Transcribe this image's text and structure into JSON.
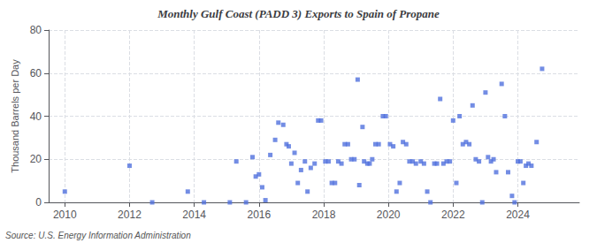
{
  "chart_data": {
    "type": "scatter",
    "title": "Monthly Gulf Coast (PADD 3) Exports to Spain of Propane",
    "ylabel": "Thousand Barrels per Day",
    "annotations": [
      "Source: U.S. Energy Information Administration"
    ],
    "marker": "square",
    "grid": true,
    "xlim": [
      2009.5,
      2025.9
    ],
    "ylim": [
      0,
      80
    ],
    "xticks": [
      2010,
      2012,
      2014,
      2016,
      2018,
      2020,
      2022,
      2024
    ],
    "yticks": [
      0,
      20,
      40,
      60,
      80
    ],
    "x": [
      2010.0,
      2012.0,
      2012.7,
      2013.8,
      2014.3,
      2015.1,
      2015.3,
      2015.6,
      2015.8,
      2015.9,
      2016.0,
      2016.1,
      2016.2,
      2016.35,
      2016.5,
      2016.6,
      2016.75,
      2016.85,
      2016.92,
      2017.0,
      2017.1,
      2017.2,
      2017.3,
      2017.42,
      2017.5,
      2017.6,
      2017.72,
      2017.83,
      2017.92,
      2018.05,
      2018.15,
      2018.25,
      2018.35,
      2018.45,
      2018.55,
      2018.65,
      2018.75,
      2018.85,
      2018.95,
      2019.05,
      2019.1,
      2019.2,
      2019.25,
      2019.35,
      2019.42,
      2019.5,
      2019.6,
      2019.7,
      2019.83,
      2019.92,
      2020.05,
      2020.15,
      2020.25,
      2020.35,
      2020.45,
      2020.55,
      2020.65,
      2020.75,
      2020.85,
      2021.0,
      2021.1,
      2021.2,
      2021.3,
      2021.42,
      2021.5,
      2021.6,
      2021.7,
      2021.8,
      2021.9,
      2022.0,
      2022.1,
      2022.2,
      2022.3,
      2022.4,
      2022.5,
      2022.6,
      2022.7,
      2022.8,
      2022.9,
      2023.0,
      2023.08,
      2023.17,
      2023.25,
      2023.33,
      2023.5,
      2023.6,
      2023.7,
      2023.82,
      2023.9,
      2024.0,
      2024.08,
      2024.17,
      2024.25,
      2024.33,
      2024.42,
      2024.58,
      2024.75
    ],
    "values": [
      5,
      17,
      0,
      5,
      0,
      0,
      19,
      0,
      21,
      12,
      13,
      7,
      1,
      22,
      29,
      37,
      36,
      27,
      26,
      18,
      23,
      9,
      15,
      19,
      5,
      16,
      18,
      38,
      38,
      19,
      19,
      9,
      9,
      19,
      18,
      27,
      27,
      20,
      20,
      57,
      8,
      35,
      19,
      18,
      18,
      20,
      27,
      27,
      40,
      40,
      27,
      26,
      5,
      9,
      28,
      27,
      19,
      19,
      18,
      19,
      18,
      5,
      0,
      18,
      18,
      48,
      18,
      19,
      19,
      38,
      9,
      40,
      27,
      28,
      27,
      45,
      20,
      19,
      0,
      51,
      21,
      19,
      20,
      14,
      55,
      40,
      14,
      3,
      0,
      19,
      19,
      9,
      17,
      18,
      17,
      28,
      62
    ]
  }
}
